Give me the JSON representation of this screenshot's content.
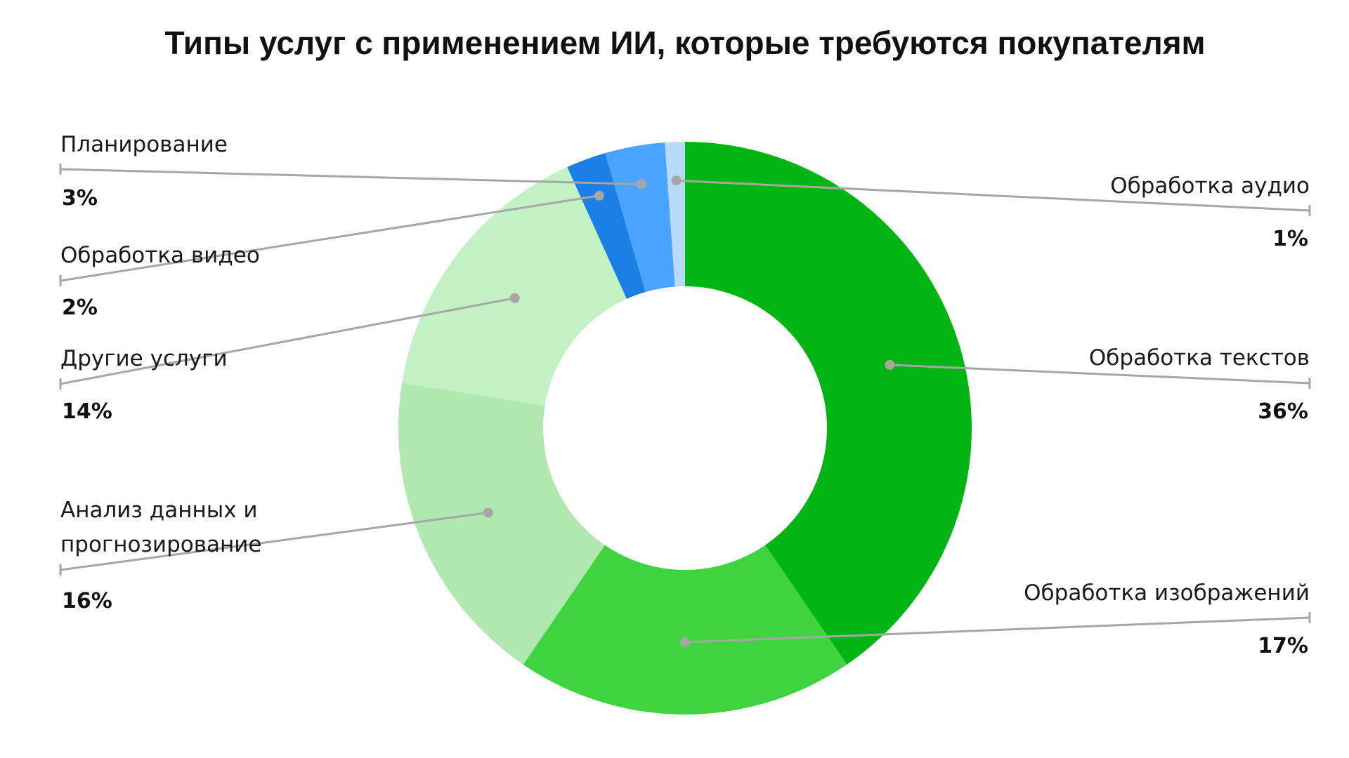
{
  "chart_data": {
    "type": "pie",
    "variant": "donut",
    "title": "Типы услуг с применением ИИ, которые требуются покупателям",
    "unit": "%",
    "legend": "leader-line labels",
    "slices": [
      {
        "label": "Обработка текстов",
        "value": 36,
        "value_label": "36%",
        "color": "#00b512"
      },
      {
        "label": "Обработка изображений",
        "value": 17,
        "value_label": "17%",
        "color": "#3fd43f"
      },
      {
        "label": "Анализ данных и прогнозирование",
        "label_lines": [
          "Анализ данных и",
          "прогнозирование"
        ],
        "value": 16,
        "value_label": "16%",
        "color": "#b0e8b0"
      },
      {
        "label": "Другие услуги",
        "value": 14,
        "value_label": "14%",
        "color": "#c2f2c4"
      },
      {
        "label": "Обработка видео",
        "value": 2,
        "value_label": "2%",
        "color": "#1a7fe6"
      },
      {
        "label": "Планирование",
        "value": 3,
        "value_label": "3%",
        "color": "#4aa3ff"
      },
      {
        "label": "Обработка аудио",
        "value": 1,
        "value_label": "1%",
        "color": "#b8d9f7"
      }
    ]
  }
}
